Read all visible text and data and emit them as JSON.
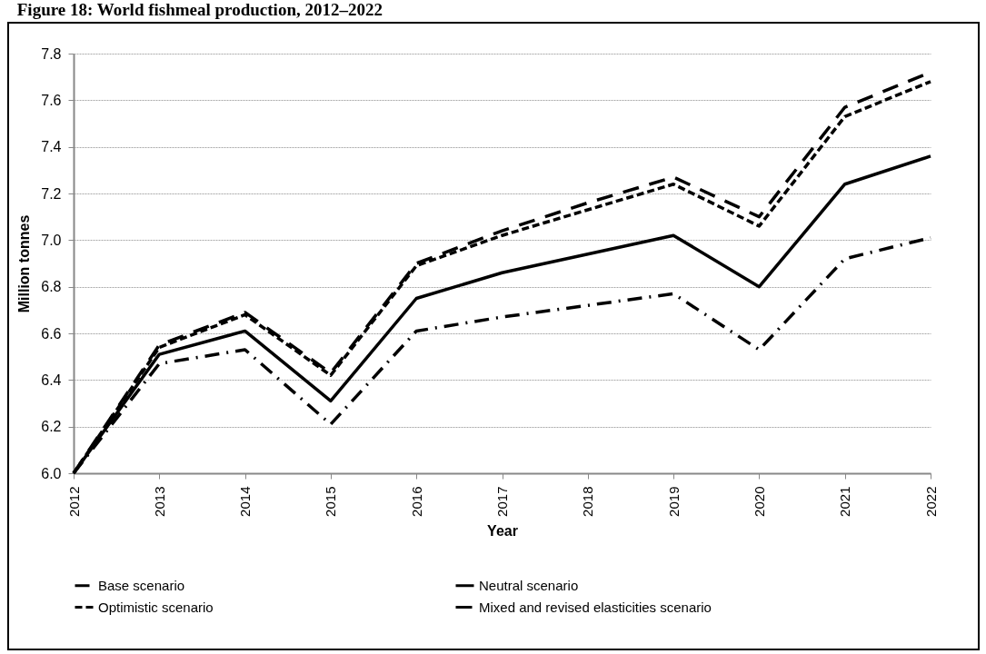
{
  "chart_data": {
    "type": "line",
    "title": "Figure 18: World fishmeal production, 2012–2022",
    "xlabel": "Year",
    "ylabel": "Million tonnes",
    "categories": [
      "2012",
      "2013",
      "2014",
      "2015",
      "2016",
      "2017",
      "2018",
      "2019",
      "2020",
      "2021",
      "2022"
    ],
    "series": [
      {
        "name": "Base scenario",
        "color": "#000000",
        "line_style": "dashdot",
        "values": [
          6.0,
          6.47,
          6.53,
          6.21,
          6.61,
          6.67,
          6.72,
          6.77,
          6.53,
          6.92,
          7.01
        ]
      },
      {
        "name": "Neutral scenario",
        "color": "#000000",
        "line_style": "solid",
        "values": [
          6.0,
          6.51,
          6.61,
          6.31,
          6.75,
          6.86,
          6.94,
          7.02,
          6.8,
          7.24,
          7.36
        ]
      },
      {
        "name": "Optimistic scenario",
        "color": "#000000",
        "line_style": "dashed",
        "values": [
          6.0,
          6.54,
          6.68,
          6.42,
          6.89,
          7.02,
          7.13,
          7.24,
          7.06,
          7.53,
          7.68
        ]
      },
      {
        "name": "Mixed and revised elasticities scenario",
        "color": "#000000",
        "line_style": "longdash",
        "values": [
          6.0,
          6.55,
          6.69,
          6.43,
          6.9,
          7.04,
          7.16,
          7.27,
          7.1,
          7.57,
          7.72
        ]
      }
    ],
    "ylim": [
      6.0,
      7.8
    ],
    "yticks": [
      {
        "value": 6.0,
        "label": "6.0"
      },
      {
        "value": 6.2,
        "label": "6.2"
      },
      {
        "value": 6.4,
        "label": "6.4"
      },
      {
        "value": 6.6,
        "label": "6.6"
      },
      {
        "value": 6.8,
        "label": "6.8"
      },
      {
        "value": 7.0,
        "label": "7.0"
      },
      {
        "value": 7.2,
        "label": "7.2"
      },
      {
        "value": 7.4,
        "label": "7.4"
      },
      {
        "value": 7.6,
        "label": "7.6"
      },
      {
        "value": 7.8,
        "label": "7.8"
      }
    ],
    "grid": "y",
    "legend": "bottom",
    "marker": "none"
  }
}
